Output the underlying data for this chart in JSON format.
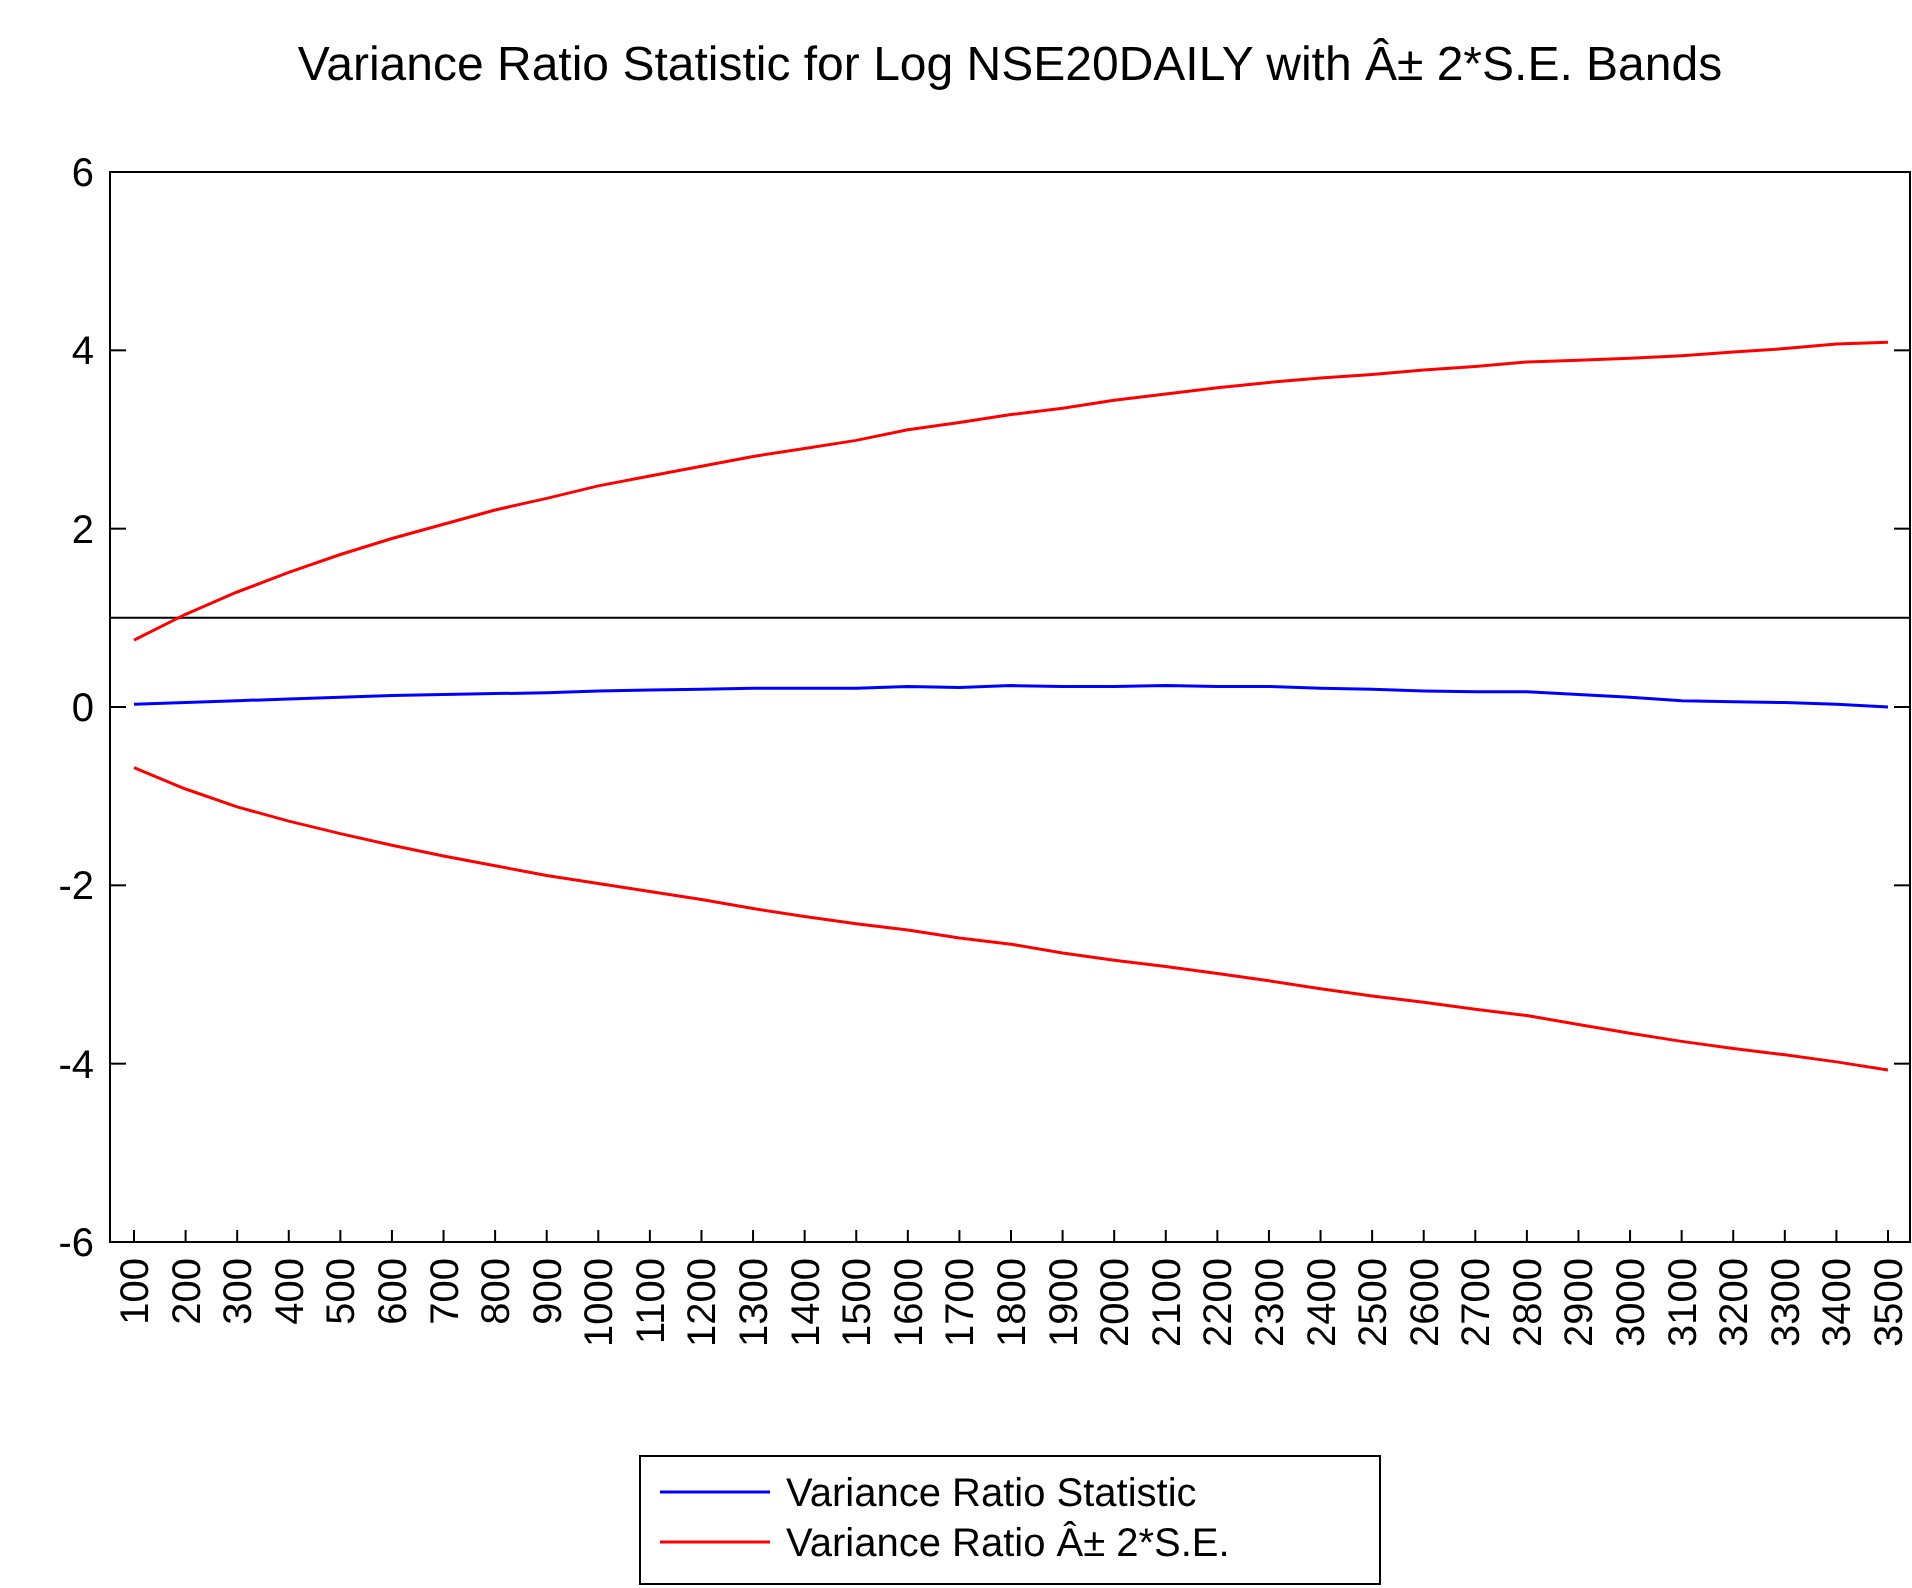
{
  "chart_data": {
    "type": "line",
    "title": "Variance Ratio Statistic for Log NSE20DAILY with Â± 2*S.E. Bands",
    "categories": [
      "100",
      "200",
      "300",
      "400",
      "500",
      "600",
      "700",
      "800",
      "900",
      "1000",
      "1100",
      "1200",
      "1300",
      "1400",
      "1500",
      "1600",
      "1700",
      "1800",
      "1900",
      "2000",
      "2100",
      "2200",
      "2300",
      "2400",
      "2500",
      "2600",
      "2700",
      "2800",
      "2900",
      "3000",
      "3100",
      "3200",
      "3300",
      "3400",
      "3500"
    ],
    "series": [
      {
        "name": "Variance Ratio Statistic",
        "color": "#0000ff",
        "values": [
          0.03,
          0.05,
          0.07,
          0.09,
          0.11,
          0.13,
          0.14,
          0.15,
          0.16,
          0.18,
          0.19,
          0.2,
          0.21,
          0.21,
          0.21,
          0.23,
          0.22,
          0.24,
          0.23,
          0.23,
          0.24,
          0.23,
          0.23,
          0.21,
          0.2,
          0.18,
          0.17,
          0.17,
          0.14,
          0.11,
          0.07,
          0.06,
          0.05,
          0.03,
          0.0
        ]
      },
      {
        "name": "Variance Ratio Â± 2*S.E.",
        "color": "#ff0000",
        "values": [
          0.75,
          1.04,
          1.29,
          1.51,
          1.71,
          1.89,
          2.05,
          2.21,
          2.34,
          2.48,
          2.59,
          2.7,
          2.81,
          2.9,
          2.99,
          3.11,
          3.19,
          3.28,
          3.35,
          3.44,
          3.51,
          3.58,
          3.64,
          3.69,
          3.73,
          3.78,
          3.82,
          3.87,
          3.89,
          3.91,
          3.94,
          3.98,
          4.02,
          4.07,
          4.09
        ]
      },
      {
        "color": "#ff0000",
        "values": [
          -0.68,
          -0.92,
          -1.12,
          -1.28,
          -1.42,
          -1.55,
          -1.67,
          -1.78,
          -1.89,
          -1.98,
          -2.07,
          -2.16,
          -2.26,
          -2.35,
          -2.43,
          -2.5,
          -2.59,
          -2.66,
          -2.76,
          -2.84,
          -2.91,
          -2.99,
          -3.07,
          -3.16,
          -3.24,
          -3.31,
          -3.39,
          -3.46,
          -3.56,
          -3.66,
          -3.75,
          -3.83,
          -3.9,
          -3.98,
          -4.07
        ]
      }
    ],
    "ylim": [
      -6,
      6
    ],
    "yticks": [
      -6,
      -4,
      -2,
      0,
      2,
      4,
      6
    ],
    "ref_lines": [
      {
        "axis": "y",
        "value": 1,
        "color": "#000000"
      }
    ],
    "grid": false,
    "legend": "bottom",
    "marker": "none",
    "line_style": "solid"
  }
}
